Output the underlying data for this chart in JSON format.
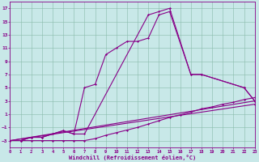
{
  "xlabel": "Windchill (Refroidissement éolien,°C)",
  "bg_color": "#c8e8e8",
  "line_color": "#880088",
  "grid_color": "#88bbaa",
  "xlim": [
    0,
    23
  ],
  "ylim": [
    -4,
    18
  ],
  "xticks": [
    0,
    1,
    2,
    3,
    4,
    5,
    6,
    7,
    8,
    9,
    10,
    11,
    12,
    13,
    14,
    15,
    16,
    17,
    18,
    19,
    20,
    21,
    22,
    23
  ],
  "yticks": [
    -3,
    -1,
    1,
    3,
    5,
    7,
    9,
    11,
    13,
    15,
    17
  ],
  "series": [
    {
      "x": [
        1,
        2,
        3,
        4,
        5,
        6,
        7,
        8,
        9,
        10,
        11,
        12,
        13,
        14,
        15,
        17,
        18,
        22,
        23
      ],
      "y": [
        -3,
        -2.5,
        -2.5,
        -2,
        -1.5,
        -2,
        5,
        5.5,
        10,
        11,
        12,
        12,
        12.5,
        16,
        16.5,
        7,
        7,
        5,
        3
      ]
    },
    {
      "x": [
        1,
        2,
        3,
        4,
        5,
        6,
        7,
        13,
        14,
        15,
        17,
        18,
        22,
        23
      ],
      "y": [
        -3,
        -2.5,
        -2.5,
        -2,
        -1.5,
        -2,
        -2,
        16,
        16.5,
        17,
        7,
        7,
        5,
        3
      ]
    },
    {
      "x": [
        0,
        1,
        2,
        3,
        4,
        5,
        6,
        7,
        8,
        9,
        10,
        11,
        12,
        13,
        14,
        15,
        16,
        17,
        18,
        19,
        20,
        21,
        22,
        23
      ],
      "y": [
        -3,
        -3,
        -3,
        -3,
        -3,
        -3,
        -3,
        -3,
        -2.7,
        -2.2,
        -1.8,
        -1.4,
        -1.0,
        -0.5,
        0,
        0.5,
        0.9,
        1.3,
        1.8,
        2.1,
        2.5,
        2.8,
        3.2,
        3.5
      ]
    },
    {
      "x": [
        0,
        23
      ],
      "y": [
        -3,
        3
      ]
    },
    {
      "x": [
        0,
        23
      ],
      "y": [
        -3,
        2.5
      ]
    }
  ]
}
